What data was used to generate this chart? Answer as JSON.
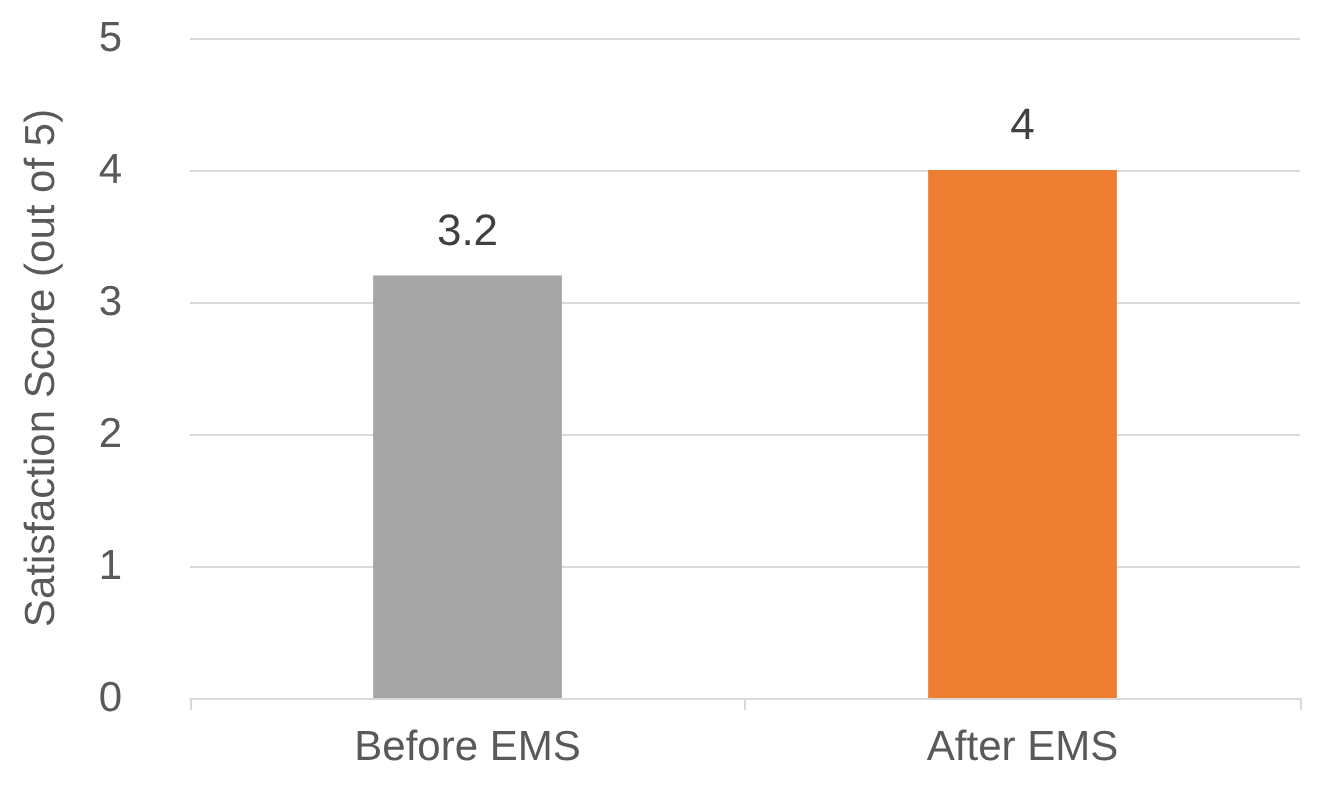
{
  "chart_data": {
    "type": "bar",
    "ylabel": "Satisfaction Score (out of 5)",
    "categories": [
      "Before EMS",
      "After EMS"
    ],
    "values": [
      3.2,
      4
    ],
    "colors": [
      "#a5a5a5",
      "#ed7d31"
    ],
    "ylim": [
      0,
      5
    ],
    "yticks": [
      0,
      1,
      2,
      3,
      4,
      5
    ],
    "grid": "y",
    "data_labels": true
  }
}
